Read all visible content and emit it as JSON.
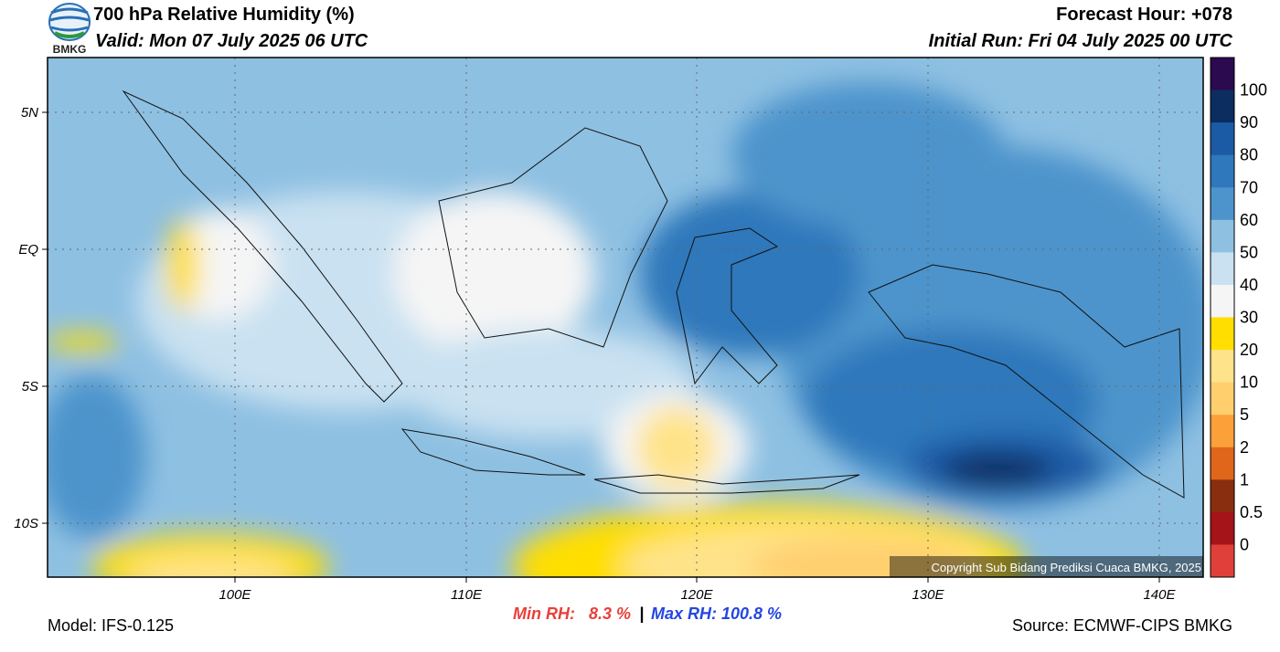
{
  "header": {
    "title": "700 hPa Relative Humidity (%)",
    "valid": "Valid: Mon 07 July 2025 06 UTC",
    "forecast_hour": "Forecast Hour: +078",
    "initial_run": "Initial Run: Fri 04 July 2025 00 UTC",
    "logo": "BMKG"
  },
  "map": {
    "lat_labels": [
      "5N",
      "EQ",
      "5S",
      "10S"
    ],
    "lon_labels": [
      "100E",
      "110E",
      "120E",
      "130E",
      "140E"
    ],
    "copyright": "Copyright Sub Bidang Prediksi Cuaca BMKG, 2025"
  },
  "colorbar": {
    "labels": [
      "100",
      "90",
      "80",
      "70",
      "60",
      "50",
      "40",
      "30",
      "20",
      "10",
      "5",
      "2",
      "1",
      "0.5",
      "0"
    ],
    "colors": [
      "#2b0a4f",
      "#0c2d5f",
      "#1b5aa5",
      "#2f78bb",
      "#4d94cc",
      "#8ec0e2",
      "#c9e1f1",
      "#f5f5f5",
      "#ffde00",
      "#ffe38a",
      "#ffcf6e",
      "#fca03a",
      "#e0661c",
      "#c04a12",
      "#8a2e10",
      "#5e1f0e",
      "#a51418",
      "#e0403a"
    ]
  },
  "footer": {
    "model": "Model: IFS-0.125",
    "min_rh": "Min RH:   8.3 %",
    "separator": "|",
    "max_rh": "Max RH: 100.8 %",
    "source": "Source: ECMWF-CIPS BMKG"
  }
}
